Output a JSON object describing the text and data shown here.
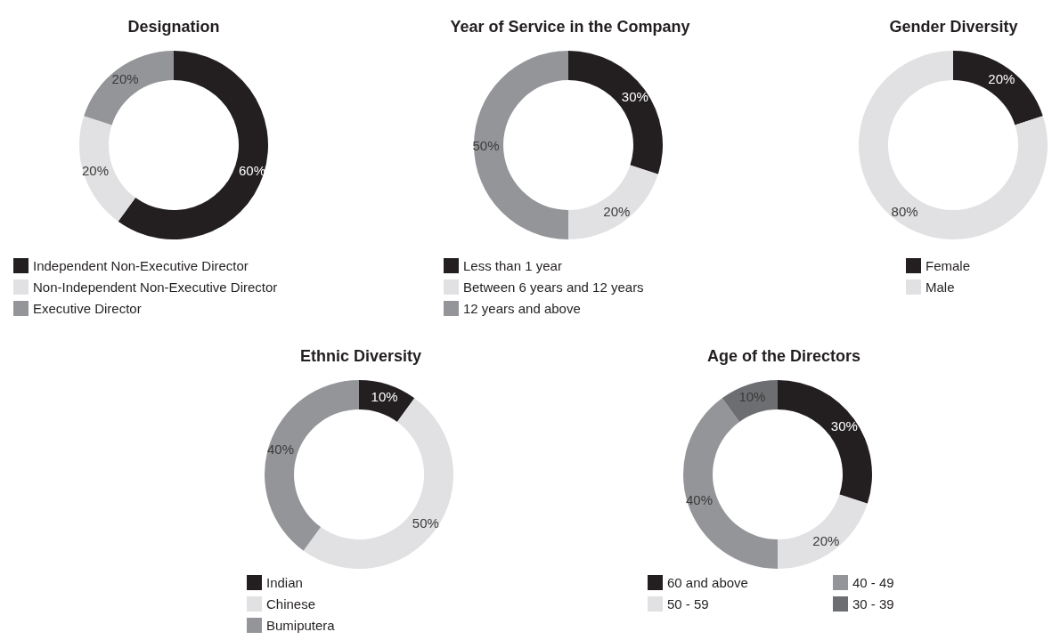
{
  "chart_data": [
    {
      "type": "donut",
      "title": "Designation",
      "categories": [
        "Independent Non-Executive Director",
        "Non-Independent Non-Executive Director",
        "Executive Director"
      ],
      "values": [
        60,
        20,
        20
      ],
      "value_labels": [
        "60%",
        "20%",
        "20%"
      ],
      "colors": [
        "#231f20",
        "#e1e1e3",
        "#939598"
      ],
      "legend": "bottom"
    },
    {
      "type": "donut",
      "title": "Year of Service in the Company",
      "categories": [
        "Less than 1 year",
        "Between 6 years and 12 years",
        "12 years and above"
      ],
      "values": [
        30,
        20,
        50
      ],
      "value_labels": [
        "30%",
        "20%",
        "50%"
      ],
      "colors": [
        "#231f20",
        "#e1e1e3",
        "#939598"
      ],
      "legend": "bottom"
    },
    {
      "type": "donut",
      "title": "Gender Diversity",
      "categories": [
        "Female",
        "Male"
      ],
      "values": [
        20,
        80
      ],
      "value_labels": [
        "20%",
        "80%"
      ],
      "colors": [
        "#231f20",
        "#e1e1e3"
      ],
      "legend": "bottom"
    },
    {
      "type": "donut",
      "title": "Ethnic Diversity",
      "categories": [
        "Indian",
        "Chinese",
        "Bumiputera"
      ],
      "values": [
        10,
        50,
        40
      ],
      "value_labels": [
        "10%",
        "50%",
        "40%"
      ],
      "colors": [
        "#231f20",
        "#e1e1e3",
        "#939598"
      ],
      "legend": "bottom"
    },
    {
      "type": "donut",
      "title": "Age of the Directors",
      "categories": [
        "60 and above",
        "50 - 59",
        "40 - 49",
        "30 - 39"
      ],
      "values": [
        30,
        20,
        40,
        10
      ],
      "value_labels": [
        "30%",
        "20%",
        "40%",
        "10%"
      ],
      "colors": [
        "#231f20",
        "#e1e1e3",
        "#939598",
        "#6d6e71"
      ],
      "legend": "bottom"
    }
  ]
}
